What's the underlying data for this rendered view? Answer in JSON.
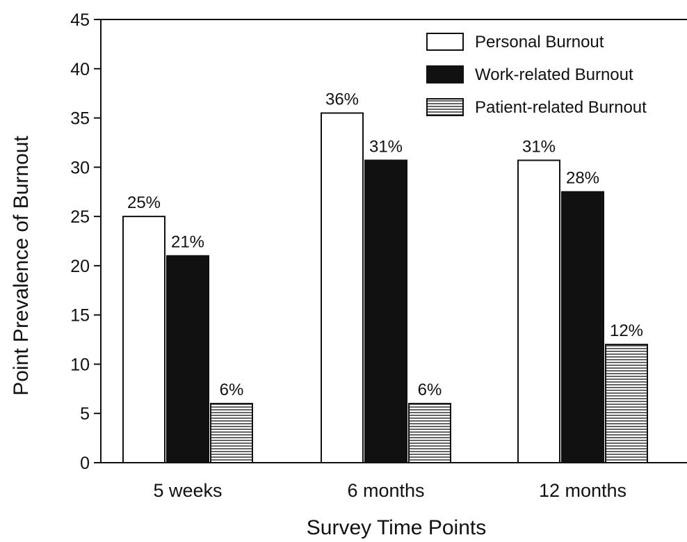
{
  "chart_data": {
    "type": "bar",
    "title": "",
    "xlabel": "Survey Time Points",
    "ylabel": "Point Prevalence of Burnout",
    "categories": [
      "5 weeks",
      "6 months",
      "12 months"
    ],
    "ylim": [
      0,
      45
    ],
    "yticks": [
      0,
      5,
      10,
      15,
      20,
      25,
      30,
      35,
      40,
      45
    ],
    "grid": false,
    "legend_position": "top-right",
    "series": [
      {
        "name": "Personal Burnout",
        "values": [
          25,
          35.5,
          30.7
        ],
        "data_labels": [
          "25%",
          "36%",
          "31%"
        ],
        "style": "white",
        "color": "#ffffff"
      },
      {
        "name": "Work-related Burnout",
        "values": [
          21,
          30.7,
          27.5
        ],
        "data_labels": [
          "21%",
          "31%",
          "28%"
        ],
        "style": "solid",
        "color": "#111111"
      },
      {
        "name": "Patient-related Burnout",
        "values": [
          6,
          6,
          12
        ],
        "data_labels": [
          "6%",
          "6%",
          "12%"
        ],
        "style": "horizontal-hatch",
        "color": "#111111"
      }
    ]
  }
}
